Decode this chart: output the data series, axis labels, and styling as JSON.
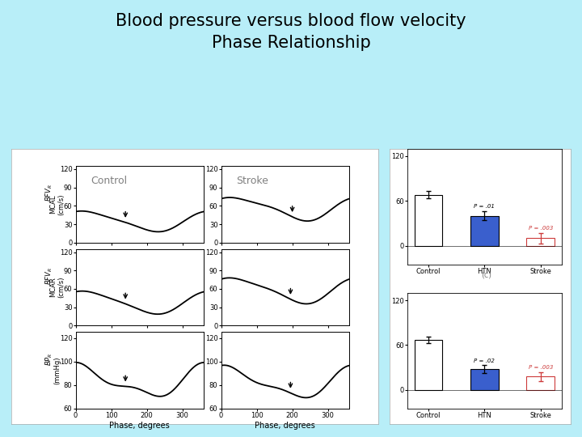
{
  "title": "Blood pressure versus blood flow velocity\nPhase Relationship",
  "background_color": "#b8eef8",
  "control_label": "Control",
  "stroke_label": "Stroke",
  "xlabel": "Phase, degrees",
  "bar_categories": [
    "Control",
    "HTN",
    "Stroke"
  ],
  "bar1_values": [
    68,
    40,
    10
  ],
  "bar1_errors": [
    5,
    6,
    7
  ],
  "bar2_values": [
    67,
    28,
    18
  ],
  "bar2_errors": [
    4,
    5,
    6
  ],
  "bar_colors": [
    "#ffffff",
    "#3a5fcd",
    "#ffffff"
  ],
  "bar_edge_colors": [
    "#000000",
    "#000000",
    "#cd3a3a"
  ],
  "bar_error_colors": [
    "#000000",
    "#000000",
    "#cd3a3a"
  ],
  "p_label_htn_1": "P = .01",
  "p_label_stroke_1": "P = .003",
  "p_label_htn_2": "P = .02",
  "p_label_stroke_2": "P = .003",
  "bar_chart_label": "(c)",
  "bar_ylim": [
    -25,
    130
  ],
  "bar_yticks": [
    0,
    60,
    120
  ]
}
